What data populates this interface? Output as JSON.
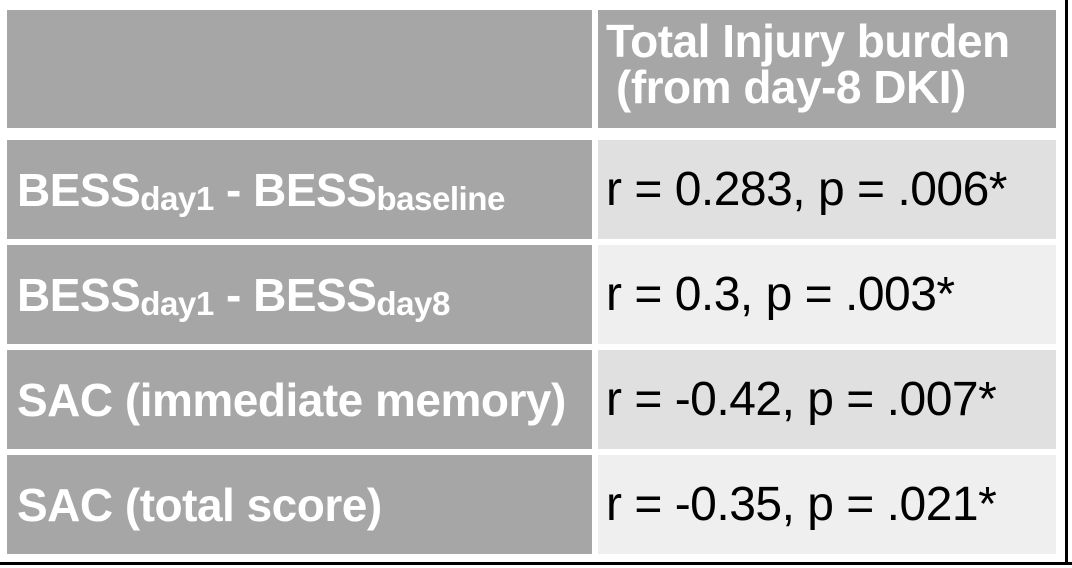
{
  "table": {
    "header": {
      "empty_label": "",
      "line1": "Total Injury burden",
      "line2": "(from day-8 DKI)"
    },
    "rows": [
      {
        "label": {
          "t1": "BESS",
          "s1": "day1",
          "t2": " - BESS",
          "s2": "baseline"
        },
        "value": "r = 0.283, p = .006*"
      },
      {
        "label": {
          "t1": "BESS",
          "s1": "day1",
          "t2": " - BESS",
          "s2": "day8"
        },
        "value": "r = 0.3, p = .003*"
      },
      {
        "label": {
          "t1": "SAC (immediate memory)"
        },
        "value": "r = -0.42, p = .007*"
      },
      {
        "label": {
          "t1": "SAC (total score)"
        },
        "value": "r = -0.35, p = .021*"
      }
    ]
  },
  "colors": {
    "cell_gray": "#a6a6a6",
    "value_row_shade_a": "#e0e0e0",
    "value_row_shade_b": "#efefef",
    "frame_black": "#000000",
    "label_text": "#ffffff",
    "value_text": "#000000"
  },
  "chart_data": {
    "type": "table",
    "columns": [
      "",
      "Total Injury burden (from day-8 DKI)"
    ],
    "rows": [
      [
        "BESS day1 - BESS baseline",
        "r = 0.283, p = .006*"
      ],
      [
        "BESS day1 - BESS day8",
        "r = 0.3, p = .003*"
      ],
      [
        "SAC (immediate memory)",
        "r = -0.42, p = .007*"
      ],
      [
        "SAC (total score)",
        "r = -0.35, p = .021*"
      ]
    ]
  }
}
